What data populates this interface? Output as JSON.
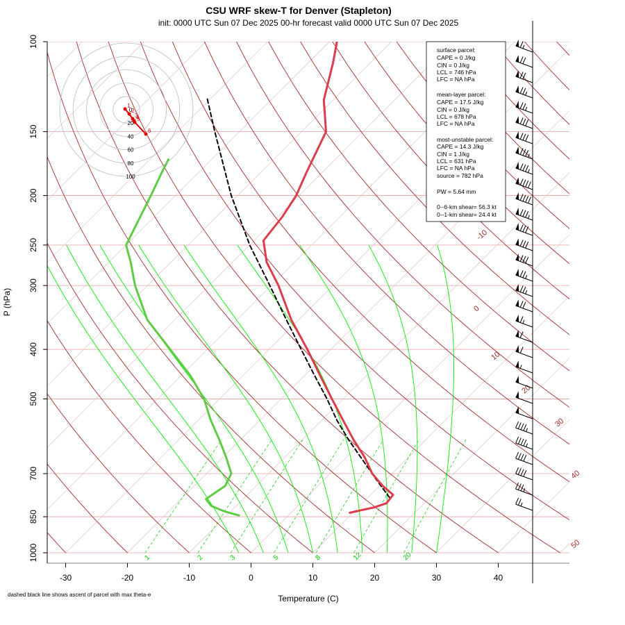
{
  "chart_data": {
    "type": "skew-t",
    "title": "CSU WRF skew-T for Denver (Stapleton)",
    "subtitle": "init: 0000 UTC Sun 07 Dec 2025    00-hr forecast valid 0000 UTC Sun 07 Dec 2025",
    "xlabel": "Temperature (C)",
    "ylabel": "P (hPa)",
    "footnote": "dashed black line shows ascent of parcel with max theta-e",
    "x_ticks": [
      -30,
      -20,
      -10,
      0,
      10,
      20,
      30,
      40
    ],
    "p_ticks": [
      100,
      150,
      200,
      250,
      300,
      400,
      500,
      700,
      850,
      1000
    ],
    "p_range": [
      1000,
      100
    ],
    "log_pressure_axis": true,
    "temperature_profile": [
      {
        "p": 835,
        "t": 9.5
      },
      {
        "p": 825,
        "t": 11
      },
      {
        "p": 815,
        "t": 12.6
      },
      {
        "p": 800,
        "t": 13.9
      },
      {
        "p": 770,
        "t": 13.6
      },
      {
        "p": 740,
        "t": 10.5
      },
      {
        "p": 700,
        "t": 6.8
      },
      {
        "p": 650,
        "t": 2.9
      },
      {
        "p": 600,
        "t": -1.8
      },
      {
        "p": 550,
        "t": -6.6
      },
      {
        "p": 500,
        "t": -11.8
      },
      {
        "p": 450,
        "t": -17.5
      },
      {
        "p": 400,
        "t": -23.8
      },
      {
        "p": 350,
        "t": -31.2
      },
      {
        "p": 300,
        "t": -38.8
      },
      {
        "p": 270,
        "t": -44.5
      },
      {
        "p": 245,
        "t": -48.5
      },
      {
        "p": 220,
        "t": -49.3
      },
      {
        "p": 200,
        "t": -50.5
      },
      {
        "p": 180,
        "t": -52.6
      },
      {
        "p": 150,
        "t": -56
      },
      {
        "p": 130,
        "t": -61.5
      },
      {
        "p": 110,
        "t": -66
      },
      {
        "p": 100,
        "t": -68.8
      }
    ],
    "dewpoint_profile": [
      {
        "p": 845,
        "t": -8
      },
      {
        "p": 830,
        "t": -11
      },
      {
        "p": 810,
        "t": -14
      },
      {
        "p": 785,
        "t": -16
      },
      {
        "p": 740,
        "t": -15
      },
      {
        "p": 700,
        "t": -16
      },
      {
        "p": 650,
        "t": -19.5
      },
      {
        "p": 600,
        "t": -23.5
      },
      {
        "p": 550,
        "t": -28
      },
      {
        "p": 500,
        "t": -32.5
      },
      {
        "p": 450,
        "t": -38.5
      },
      {
        "p": 400,
        "t": -46
      },
      {
        "p": 350,
        "t": -54.5
      },
      {
        "p": 300,
        "t": -62
      },
      {
        "p": 270,
        "t": -66.5
      },
      {
        "p": 250,
        "t": -70
      },
      {
        "p": 230,
        "t": -71.5
      },
      {
        "p": 200,
        "t": -74
      },
      {
        "p": 180,
        "t": -76
      },
      {
        "p": 170,
        "t": -77
      }
    ],
    "parcel_profile": [
      {
        "p": 780,
        "t": 13.5
      },
      {
        "p": 720,
        "t": 8.5
      },
      {
        "p": 660,
        "t": 3.2
      },
      {
        "p": 600,
        "t": -2.6
      },
      {
        "p": 550,
        "t": -7.6
      },
      {
        "p": 500,
        "t": -12.6
      },
      {
        "p": 450,
        "t": -18.4
      },
      {
        "p": 400,
        "t": -24.8
      },
      {
        "p": 350,
        "t": -32
      },
      {
        "p": 300,
        "t": -40.2
      },
      {
        "p": 250,
        "t": -50
      },
      {
        "p": 200,
        "t": -61
      },
      {
        "p": 150,
        "t": -74
      },
      {
        "p": 128,
        "t": -81
      }
    ],
    "isotherm_labels": [
      -10,
      0,
      10,
      20,
      30,
      40,
      50
    ],
    "mixing_ratio_labels": [
      "1",
      "2",
      "3",
      "5",
      "8",
      "12",
      "20"
    ],
    "stats": {
      "surface_title": "surface parcel:",
      "surface_lines": [
        "CAPE = 0 J/kg",
        "CIN = 0 J/kg",
        "LCL = 746 hPa",
        "LFC = NA hPa"
      ],
      "mean_title": "mean-layer parcel:",
      "mean_lines": [
        "CAPE = 17.5 J/kg",
        "CIN = 0 J/kg",
        "LCL = 678 hPa",
        "LFC = NA hPa"
      ],
      "mu_title": "most-unstable parcel:",
      "mu_lines": [
        "CAPE = 14.3 J/kg",
        "CIN = 1  J/kg",
        "LCL = 631 hPa",
        "LFC = NA hPa",
        "source = 782 hPa"
      ],
      "pw": "PW =  5.64 mm",
      "shear06": "0--6-km shear= 56.3 kt",
      "shear01": "0--1-km shear= 24.4 kt"
    },
    "hodograph": {
      "ring_labels": [
        "0",
        "20",
        "40",
        "60",
        "80",
        "100"
      ],
      "point_labels": [
        "1",
        "2",
        "3",
        "4",
        "5",
        "6"
      ]
    },
    "wind_profile_kt": [
      {
        "p": 845,
        "dir": 300,
        "spd": 25
      },
      {
        "p": 800,
        "dir": 280,
        "spd": 30
      },
      {
        "p": 700,
        "dir": 290,
        "spd": 40
      },
      {
        "p": 600,
        "dir": 295,
        "spd": 45
      },
      {
        "p": 500,
        "dir": 300,
        "spd": 50
      },
      {
        "p": 400,
        "dir": 300,
        "spd": 60
      },
      {
        "p": 300,
        "dir": 295,
        "spd": 75
      },
      {
        "p": 250,
        "dir": 295,
        "spd": 80
      },
      {
        "p": 200,
        "dir": 295,
        "spd": 90
      },
      {
        "p": 150,
        "dir": 295,
        "spd": 80
      },
      {
        "p": 100,
        "dir": 290,
        "spd": 65
      }
    ],
    "colors": {
      "temperature": "#dc3c4b",
      "dewpoint": "#5fcc46",
      "parcel": "#000000",
      "dry_adiabat": "#a52a2a",
      "moist_adiabat": "#00ee00",
      "mixing_ratio": "#00cc00",
      "isobar": "#e8a0a0",
      "isotherm": "#d9b7b7"
    }
  }
}
